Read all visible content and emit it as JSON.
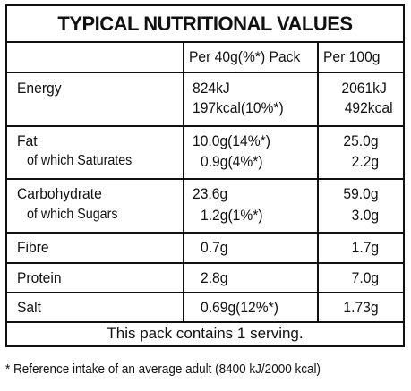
{
  "title": "TYPICAL NUTRITIONAL VALUES",
  "headers": {
    "per_pack": "Per 40g(%*) Pack",
    "per_100g": "Per 100g"
  },
  "rows": {
    "energy": {
      "label": "Energy",
      "pack_line1": "824kJ",
      "pack_line2": "197kcal(10%*)",
      "per100_line1": "2061kJ",
      "per100_line2": "492kcal"
    },
    "fat": {
      "label": "Fat",
      "sublabel": "of which Saturates",
      "pack_line1": "10.0g(14%*)",
      "pack_line2": "0.9g(4%*)",
      "per100_line1": "25.0g",
      "per100_line2": "2.2g"
    },
    "carbohydrate": {
      "label": "Carbohydrate",
      "sublabel": "of which Sugars",
      "pack_line1": "23.6g",
      "pack_line2": "1.2g(1%*)",
      "per100_line1": "59.0g",
      "per100_line2": "3.0g"
    },
    "fibre": {
      "label": "Fibre",
      "pack": "0.7g",
      "per100": "1.7g"
    },
    "protein": {
      "label": "Protein",
      "pack": "2.8g",
      "per100": "7.0g"
    },
    "salt": {
      "label": "Salt",
      "pack": "0.69g(12%*)",
      "per100": "1.73g"
    }
  },
  "servings_text": "This pack contains 1 serving.",
  "footnote": "* Reference intake of an average adult (8400 kJ/2000 kcal)"
}
